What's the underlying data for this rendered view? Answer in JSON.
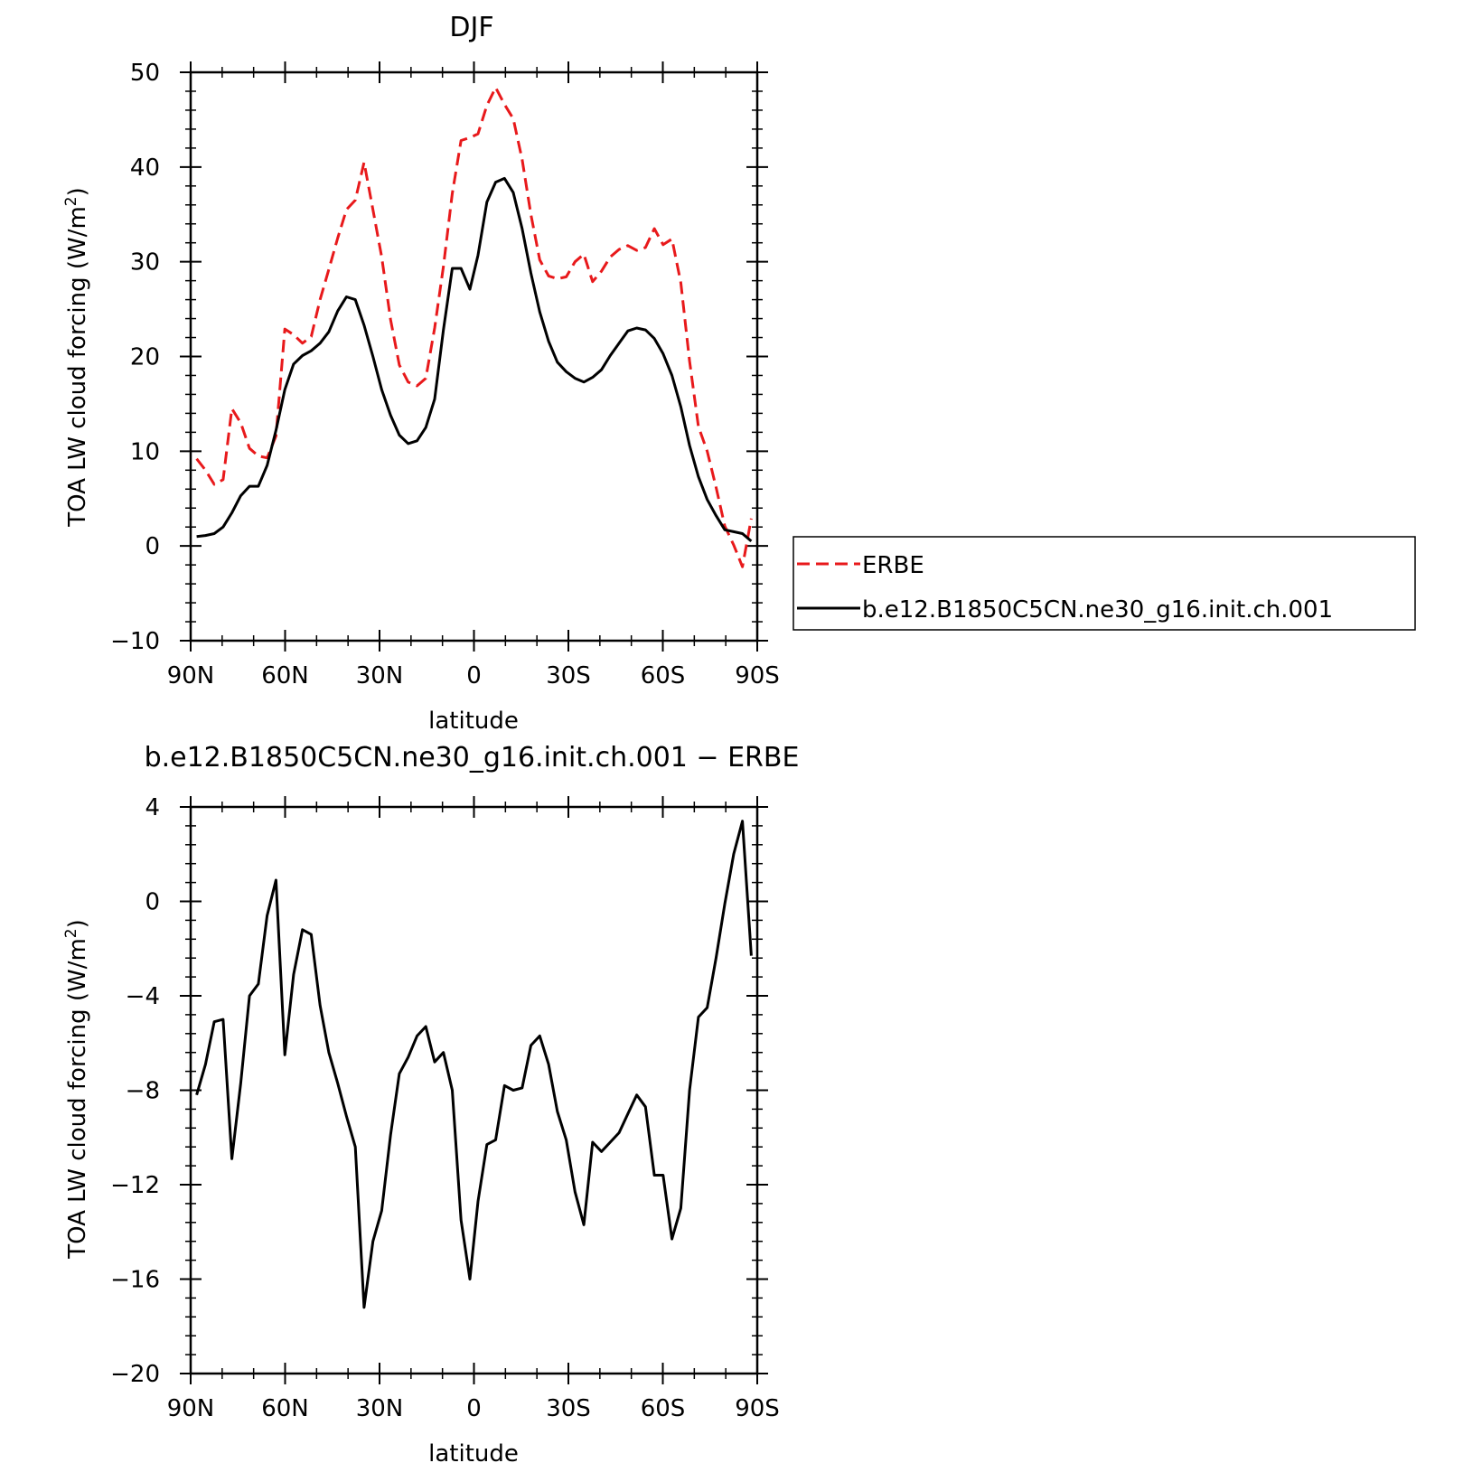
{
  "chart_data": [
    {
      "type": "line",
      "title": "DJF",
      "xlabel": "latitude",
      "ylabel": "TOA LW cloud forcing (W/m",
      "ylabel_sup": "2",
      "ylabel_close": ")",
      "xlim": [
        90,
        -90
      ],
      "ylim": [
        -10,
        50
      ],
      "xticks": [
        90,
        60,
        30,
        0,
        -30,
        -60,
        -90
      ],
      "xtick_labels": [
        "90N",
        "60N",
        "30N",
        "0",
        "30S",
        "60S",
        "90S"
      ],
      "yticks": [
        -10,
        0,
        10,
        20,
        30,
        40,
        50
      ],
      "ytick_labels": [
        "−10",
        "0",
        "10",
        "20",
        "30",
        "40",
        "50"
      ],
      "legend_position": "right",
      "series": [
        {
          "name": "ERBE",
          "color": "#e8191b",
          "dash": "dashed",
          "x": [
            88.1,
            85.3,
            82.5,
            79.7,
            76.9,
            74.1,
            71.3,
            68.5,
            65.7,
            62.9,
            60.1,
            57.3,
            54.5,
            51.7,
            48.9,
            46.1,
            43.3,
            40.5,
            37.7,
            34.9,
            32.1,
            29.3,
            26.5,
            23.7,
            20.9,
            18.1,
            15.3,
            12.5,
            9.7,
            6.9,
            4.1,
            1.3,
            -1.3,
            -4.1,
            -6.9,
            -9.7,
            -12.5,
            -15.3,
            -18.1,
            -20.9,
            -23.7,
            -26.5,
            -29.3,
            -32.1,
            -34.9,
            -37.7,
            -40.5,
            -43.3,
            -46.1,
            -48.9,
            -51.7,
            -54.5,
            -57.3,
            -60.1,
            -62.9,
            -65.7,
            -68.5,
            -71.3,
            -74.1,
            -76.9,
            -79.7,
            -82.5,
            -85.3,
            -88.1
          ],
          "y": [
            9.2,
            8.0,
            6.5,
            7.0,
            14.5,
            13.0,
            10.3,
            9.5,
            9.3,
            11.6,
            22.9,
            22.3,
            21.4,
            22.1,
            26.0,
            29.2,
            32.5,
            35.5,
            36.5,
            40.5,
            35.5,
            30.5,
            23.9,
            19.1,
            17.3,
            16.9,
            17.7,
            23.0,
            29.5,
            37.2,
            42.8,
            43.1,
            43.5,
            46.5,
            48.4,
            46.6,
            45.1,
            40.8,
            35.0,
            30.2,
            28.5,
            28.2,
            28.4,
            30.0,
            30.8,
            27.9,
            29.0,
            30.5,
            31.3,
            31.7,
            31.2,
            31.5,
            33.5,
            31.8,
            32.4,
            27.8,
            19.5,
            12.6,
            10.0,
            6.2,
            2.1,
            0.1,
            -2.2,
            2.9
          ]
        },
        {
          "name": "b.e12.B1850C5CN.ne30_g16.init.ch.001",
          "color": "#000000",
          "dash": "solid",
          "x": [
            88.1,
            85.3,
            82.5,
            79.7,
            76.9,
            74.1,
            71.3,
            68.5,
            65.7,
            62.9,
            60.1,
            57.3,
            54.5,
            51.7,
            48.9,
            46.1,
            43.3,
            40.5,
            37.7,
            34.9,
            32.1,
            29.3,
            26.5,
            23.7,
            20.9,
            18.1,
            15.3,
            12.5,
            9.7,
            6.9,
            4.1,
            1.3,
            -1.3,
            -4.1,
            -6.9,
            -9.7,
            -12.5,
            -15.3,
            -18.1,
            -20.9,
            -23.7,
            -26.5,
            -29.3,
            -32.1,
            -34.9,
            -37.7,
            -40.5,
            -43.3,
            -46.1,
            -48.9,
            -51.7,
            -54.5,
            -57.3,
            -60.1,
            -62.9,
            -65.7,
            -68.5,
            -71.3,
            -74.1,
            -76.9,
            -79.7,
            -82.5,
            -85.3,
            -88.1
          ],
          "y": [
            1.0,
            1.1,
            1.3,
            2.0,
            3.5,
            5.3,
            6.3,
            6.3,
            8.5,
            12.2,
            16.5,
            19.2,
            20.1,
            20.6,
            21.4,
            22.6,
            24.8,
            26.3,
            26.0,
            23.3,
            20.0,
            16.5,
            13.8,
            11.7,
            10.8,
            11.1,
            12.5,
            15.5,
            22.8,
            29.3,
            29.3,
            27.1,
            30.7,
            36.3,
            38.4,
            38.8,
            37.3,
            33.5,
            28.8,
            24.7,
            21.6,
            19.4,
            18.4,
            17.7,
            17.3,
            17.8,
            18.6,
            20.1,
            21.4,
            22.7,
            23.0,
            22.8,
            21.9,
            20.3,
            18.0,
            14.7,
            10.6,
            7.3,
            4.9,
            3.2,
            1.7,
            1.5,
            1.3,
            0.5
          ]
        }
      ]
    },
    {
      "type": "line",
      "title": "b.e12.B1850C5CN.ne30_g16.init.ch.001 − ERBE",
      "xlabel": "latitude",
      "ylabel": "TOA LW cloud forcing (W/m",
      "ylabel_sup": "2",
      "ylabel_close": ")",
      "xlim": [
        90,
        -90
      ],
      "ylim": [
        -20,
        4
      ],
      "xticks": [
        90,
        60,
        30,
        0,
        -30,
        -60,
        -90
      ],
      "xtick_labels": [
        "90N",
        "60N",
        "30N",
        "0",
        "30S",
        "60S",
        "90S"
      ],
      "yticks": [
        -20,
        -16,
        -12,
        -8,
        -4,
        0,
        4
      ],
      "ytick_labels": [
        "−20",
        "−16",
        "−12",
        "−8",
        "−4",
        "0",
        "4"
      ],
      "series": [
        {
          "color": "#000000",
          "dash": "solid",
          "x": [
            88.1,
            85.3,
            82.5,
            79.7,
            76.9,
            74.1,
            71.3,
            68.5,
            65.7,
            62.9,
            60.1,
            57.3,
            54.5,
            51.7,
            48.9,
            46.1,
            43.3,
            40.5,
            37.7,
            34.9,
            32.1,
            29.3,
            26.5,
            23.7,
            20.9,
            18.1,
            15.3,
            12.5,
            9.7,
            6.9,
            4.1,
            1.3,
            -1.3,
            -4.1,
            -6.9,
            -9.7,
            -12.5,
            -15.3,
            -18.1,
            -20.9,
            -23.7,
            -26.5,
            -29.3,
            -32.1,
            -34.9,
            -37.7,
            -40.5,
            -43.3,
            -46.1,
            -48.9,
            -51.7,
            -54.5,
            -57.3,
            -60.1,
            -62.9,
            -65.7,
            -68.5,
            -71.3,
            -74.1,
            -76.9,
            -79.7,
            -82.5,
            -85.3,
            -88.1
          ],
          "y": [
            -8.2,
            -6.9,
            -5.1,
            -5.0,
            -10.9,
            -7.7,
            -4.0,
            -3.5,
            -0.6,
            0.9,
            -6.5,
            -3.1,
            -1.2,
            -1.4,
            -4.4,
            -6.4,
            -7.7,
            -9.1,
            -10.4,
            -17.2,
            -14.4,
            -13.1,
            -9.9,
            -7.3,
            -6.6,
            -5.7,
            -5.3,
            -6.8,
            -6.4,
            -8.0,
            -13.5,
            -16.0,
            -12.7,
            -10.3,
            -10.1,
            -7.8,
            -8.0,
            -7.9,
            -6.1,
            -5.7,
            -6.9,
            -8.9,
            -10.1,
            -12.3,
            -13.7,
            -10.2,
            -10.6,
            -10.2,
            -9.8,
            -9.0,
            -8.2,
            -8.7,
            -11.6,
            -11.6,
            -14.3,
            -13.0,
            -8.0,
            -4.9,
            -4.5,
            -2.4,
            -0.1,
            2.0,
            3.4,
            -2.3
          ]
        }
      ]
    }
  ]
}
